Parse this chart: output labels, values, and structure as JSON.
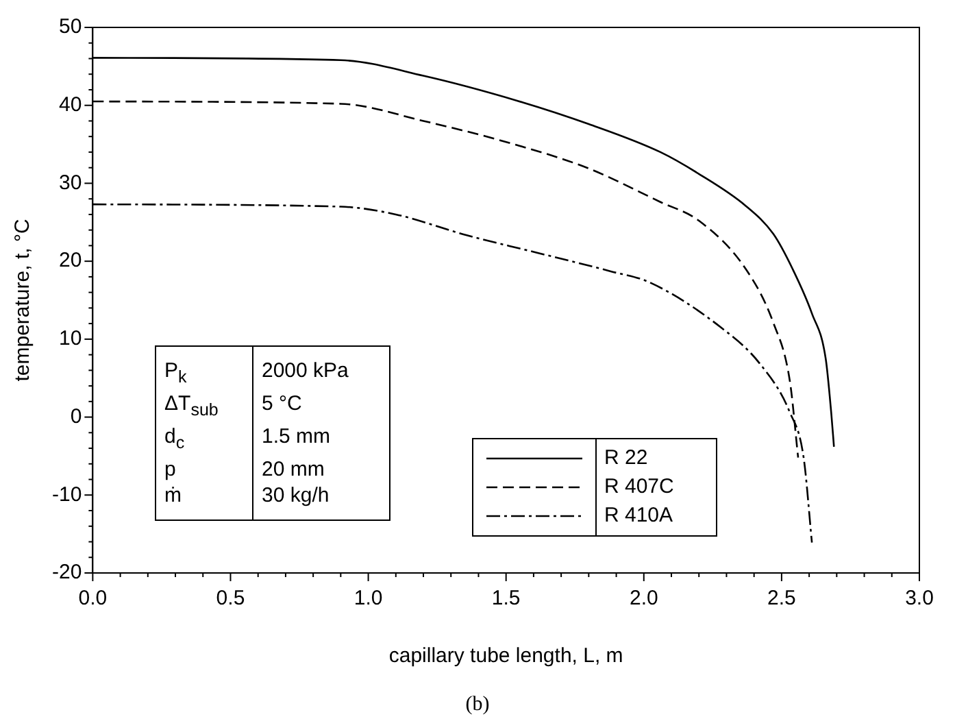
{
  "chart_data": {
    "type": "line",
    "xlabel": "capillary tube length, L, m",
    "ylabel": "temperature, t, °C",
    "xlim": [
      0,
      3
    ],
    "ylim": [
      -20,
      50
    ],
    "xticks": [
      {
        "value": 0,
        "label": "0.0"
      },
      {
        "value": 0.1,
        "label": null
      },
      {
        "value": 0.2,
        "label": null
      },
      {
        "value": 0.3,
        "label": null
      },
      {
        "value": 0.4,
        "label": null
      },
      {
        "value": 0.5,
        "label": "0.5"
      },
      {
        "value": 0.6,
        "label": null
      },
      {
        "value": 0.7,
        "label": null
      },
      {
        "value": 0.8,
        "label": null
      },
      {
        "value": 0.9,
        "label": null
      },
      {
        "value": 1,
        "label": "1.0"
      },
      {
        "value": 1.1,
        "label": null
      },
      {
        "value": 1.2,
        "label": null
      },
      {
        "value": 1.3,
        "label": null
      },
      {
        "value": 1.4,
        "label": null
      },
      {
        "value": 1.5,
        "label": "1.5"
      },
      {
        "value": 1.6,
        "label": null
      },
      {
        "value": 1.7,
        "label": null
      },
      {
        "value": 1.8,
        "label": null
      },
      {
        "value": 1.9,
        "label": null
      },
      {
        "value": 2,
        "label": "2.0"
      },
      {
        "value": 2.1,
        "label": null
      },
      {
        "value": 2.2,
        "label": null
      },
      {
        "value": 2.3,
        "label": null
      },
      {
        "value": 2.4,
        "label": null
      },
      {
        "value": 2.5,
        "label": "2.5"
      },
      {
        "value": 2.6,
        "label": null
      },
      {
        "value": 2.7,
        "label": null
      },
      {
        "value": 2.8,
        "label": null
      },
      {
        "value": 2.9,
        "label": null
      },
      {
        "value": 3,
        "label": "3.0"
      }
    ],
    "yticks": [
      -20,
      {
        "value": -18,
        "label": null
      },
      {
        "value": -16,
        "label": null
      },
      {
        "value": -14,
        "label": null
      },
      {
        "value": -12,
        "label": null
      },
      -10,
      {
        "value": -8,
        "label": null
      },
      {
        "value": -6,
        "label": null
      },
      {
        "value": -4,
        "label": null
      },
      {
        "value": -2,
        "label": null
      },
      0,
      {
        "value": 2,
        "label": null
      },
      {
        "value": 4,
        "label": null
      },
      {
        "value": 6,
        "label": null
      },
      {
        "value": 8,
        "label": null
      },
      10,
      {
        "value": 12,
        "label": null
      },
      {
        "value": 14,
        "label": null
      },
      {
        "value": 16,
        "label": null
      },
      {
        "value": 18,
        "label": null
      },
      20,
      {
        "value": 22,
        "label": null
      },
      {
        "value": 24,
        "label": null
      },
      {
        "value": 26,
        "label": null
      },
      {
        "value": 28,
        "label": null
      },
      30,
      {
        "value": 32,
        "label": null
      },
      {
        "value": 34,
        "label": null
      },
      {
        "value": 36,
        "label": null
      },
      {
        "value": 38,
        "label": null
      },
      40,
      {
        "value": 42,
        "label": null
      },
      {
        "value": 44,
        "label": null
      },
      {
        "value": 46,
        "label": null
      },
      {
        "value": 48,
        "label": null
      },
      50
    ],
    "grid": false,
    "legend": "bottom right",
    "marker": "none",
    "series": [
      {
        "name": "R 22",
        "color": "#000000",
        "line_style": "solid",
        "x": [
          0,
          0.9,
          1.2,
          1.54,
          1.8,
          2.06,
          2.2,
          2.37,
          2.47,
          2.54,
          2.61,
          2.66,
          2.68,
          2.69
        ],
        "values": [
          46.1,
          45.8,
          43.8,
          40.6,
          37.6,
          34.0,
          31.2,
          27.1,
          23.5,
          19.0,
          13.3,
          7.5,
          0.6,
          -3.8
        ]
      },
      {
        "name": "R 407C",
        "color": "#000000",
        "line_style": "dashed",
        "x": [
          0,
          0.9,
          1.2,
          1.54,
          1.8,
          2.06,
          2.2,
          2.37,
          2.47,
          2.53,
          2.56
        ],
        "values": [
          40.5,
          40.2,
          38.0,
          34.9,
          31.9,
          27.6,
          25.2,
          19.0,
          12.1,
          4.6,
          -5.2
        ]
      },
      {
        "name": "R 410A",
        "color": "#000000",
        "line_style": "dashdot",
        "x": [
          0,
          0.9,
          1.1,
          1.36,
          1.6,
          1.88,
          2.02,
          2.28,
          2.42,
          2.53,
          2.58,
          2.61
        ],
        "values": [
          27.3,
          27.0,
          26.0,
          23.3,
          21.2,
          18.7,
          17.3,
          11.5,
          6.9,
          0.6,
          -5.2,
          -16.1
        ]
      }
    ],
    "annotations": [
      "P$_{k}$",
      "2000 kPa",
      "ΔT$_{sub}$",
      "5 °C",
      "d$_{c}$",
      "1.5 mm",
      "p",
      "20 mm",
      "ṁ",
      "30 kg/h",
      "(b)"
    ]
  }
}
